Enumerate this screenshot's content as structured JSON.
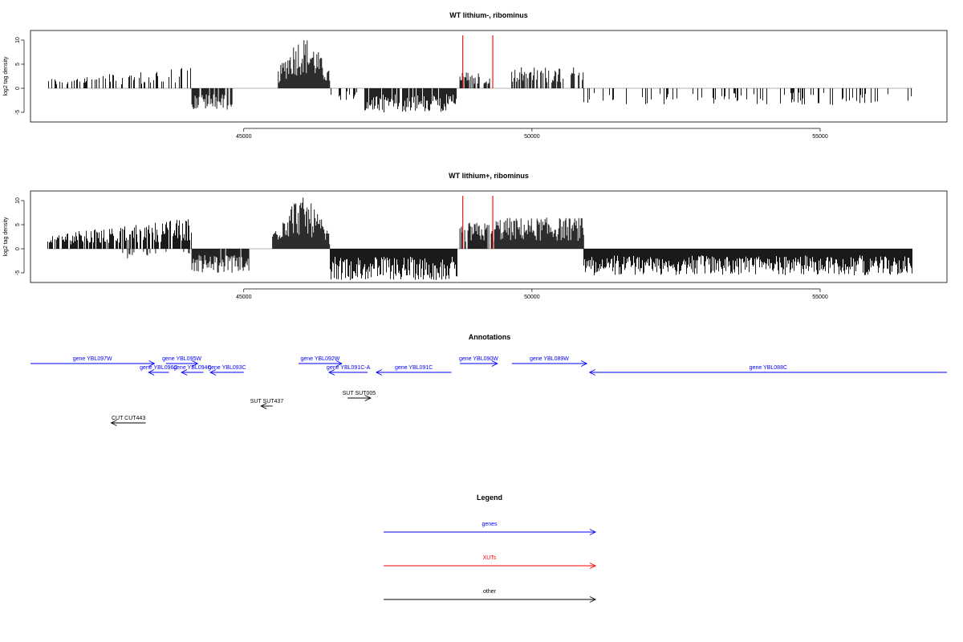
{
  "chart_data": [
    {
      "type": "bar",
      "title": "WT lithium-, ribominus",
      "ylabel": "log2 tag density",
      "xlabel": "",
      "xlim": [
        41300,
        57200
      ],
      "ylim": [
        -7,
        12
      ],
      "x_ticks": [
        45000,
        50000,
        55000
      ],
      "x_tick_labels": [
        "45000",
        "50000",
        "55000"
      ],
      "y_ticks": [
        -5,
        0,
        5,
        10
      ],
      "y_tick_labels": [
        "-5",
        "0",
        "5",
        "10"
      ],
      "grid": false,
      "density_segments": [
        {
          "x_start": 41600,
          "x_end": 44100,
          "strand": "plus",
          "peak": 4.5,
          "trend": "rising",
          "density": 0.35
        },
        {
          "x_start": 44100,
          "x_end": 44800,
          "strand": "minus",
          "peak": 4.5,
          "trend": "flat",
          "density": 0.8
        },
        {
          "x_start": 45600,
          "x_end": 46500,
          "strand": "plus",
          "peak": 10.8,
          "trend": "peak",
          "density": 1.0
        },
        {
          "x_start": 46500,
          "x_end": 47000,
          "strand": "minus",
          "peak": 2.5,
          "trend": "flat",
          "density": 0.3
        },
        {
          "x_start": 47100,
          "x_end": 48700,
          "strand": "minus",
          "peak": 5.0,
          "trend": "flat",
          "density": 0.9
        },
        {
          "x_start": 48750,
          "x_end": 49300,
          "strand": "plus",
          "peak": 3.5,
          "trend": "flat",
          "density": 0.6
        },
        {
          "x_start": 49650,
          "x_end": 50900,
          "strand": "plus",
          "peak": 4.5,
          "trend": "flat",
          "density": 0.55
        },
        {
          "x_start": 50900,
          "x_end": 56600,
          "strand": "minus",
          "peak": 3.5,
          "trend": "flat",
          "density": 0.18
        }
      ],
      "highlight_lines": [
        {
          "x": 48800,
          "y": 11,
          "color": "#ff0000"
        },
        {
          "x": 49320,
          "y": 11,
          "color": "#ff0000"
        }
      ],
      "baseline": {
        "x_start": 41600,
        "x_end": 56600,
        "y": 0
      }
    },
    {
      "type": "bar",
      "title": "WT lithium+, ribominus",
      "ylabel": "log2 tag density",
      "xlabel": "",
      "xlim": [
        41300,
        57200
      ],
      "ylim": [
        -7,
        12
      ],
      "x_ticks": [
        45000,
        50000,
        55000
      ],
      "x_tick_labels": [
        "45000",
        "50000",
        "55000"
      ],
      "y_ticks": [
        -5,
        0,
        5,
        10
      ],
      "y_tick_labels": [
        "-5",
        "0",
        "5",
        "10"
      ],
      "grid": false,
      "density_segments": [
        {
          "x_start": 41600,
          "x_end": 44100,
          "strand": "plus",
          "peak": 6.5,
          "trend": "rising",
          "density": 0.75
        },
        {
          "x_start": 42900,
          "x_end": 44100,
          "strand": "minus",
          "peak": 2.0,
          "trend": "flat",
          "density": 0.2
        },
        {
          "x_start": 44100,
          "x_end": 45100,
          "strand": "minus",
          "peak": 5.0,
          "trend": "flat",
          "density": 0.9
        },
        {
          "x_start": 45500,
          "x_end": 46500,
          "strand": "plus",
          "peak": 10.8,
          "trend": "peak",
          "density": 1.0
        },
        {
          "x_start": 46500,
          "x_end": 48700,
          "strand": "minus",
          "peak": 6.5,
          "trend": "flat",
          "density": 1.0
        },
        {
          "x_start": 48750,
          "x_end": 49350,
          "strand": "plus",
          "peak": 5.5,
          "trend": "flat",
          "density": 0.8
        },
        {
          "x_start": 49350,
          "x_end": 50900,
          "strand": "plus",
          "peak": 6.5,
          "trend": "flat",
          "density": 1.0
        },
        {
          "x_start": 50900,
          "x_end": 56600,
          "strand": "minus",
          "peak": 5.5,
          "trend": "flat",
          "density": 1.0
        }
      ],
      "highlight_lines": [
        {
          "x": 48800,
          "y": 11,
          "color": "#ff0000"
        },
        {
          "x": 49320,
          "y": 11,
          "color": "#ff0000"
        }
      ],
      "baseline": {
        "x_start": 41600,
        "x_end": 56600,
        "y": 0
      }
    }
  ],
  "annotations": {
    "title": "Annotations",
    "features": [
      {
        "label": "gene YBL097W",
        "category": "genes",
        "direction": "right",
        "start": 41300,
        "end": 43450,
        "row": 1,
        "label_row": 1
      },
      {
        "label": "gene YBL096C",
        "category": "genes",
        "direction": "left",
        "start": 43350,
        "end": 43700,
        "row": 2,
        "label_row": 2
      },
      {
        "label": "gene YBL095W",
        "category": "genes",
        "direction": "right",
        "start": 43650,
        "end": 44200,
        "row": 1,
        "label_row": 1
      },
      {
        "label": "gene YBL094C",
        "category": "genes",
        "direction": "left",
        "start": 43920,
        "end": 44300,
        "row": 2,
        "label_row": 2
      },
      {
        "label": "gene YBL093C",
        "category": "genes",
        "direction": "left",
        "start": 44420,
        "end": 45000,
        "row": 2,
        "label_row": 2
      },
      {
        "label": "gene YBL092W",
        "category": "genes",
        "direction": "right",
        "start": 45950,
        "end": 46700,
        "row": 1,
        "label_row": 1
      },
      {
        "label": "gene YBL091C-A",
        "category": "genes",
        "direction": "left",
        "start": 46480,
        "end": 47150,
        "row": 2,
        "label_row": 2
      },
      {
        "label": "gene YBL091C",
        "category": "genes",
        "direction": "left",
        "start": 47300,
        "end": 48600,
        "row": 2,
        "label_row": 2
      },
      {
        "label": "gene YBL090W",
        "category": "genes",
        "direction": "right",
        "start": 48750,
        "end": 49400,
        "row": 1,
        "label_row": 1
      },
      {
        "label": "gene YBL089W",
        "category": "genes",
        "direction": "right",
        "start": 49650,
        "end": 50950,
        "row": 1,
        "label_row": 1
      },
      {
        "label": "gene YBL088C",
        "category": "genes",
        "direction": "left",
        "start": 51000,
        "end": 57200,
        "row": 2,
        "label_row": 2
      },
      {
        "label": "SUT SUT005",
        "category": "other",
        "direction": "right",
        "start": 46800,
        "end": 47200,
        "row": 3,
        "label_row": 3
      },
      {
        "label": "SUT SUT437",
        "category": "other",
        "direction": "left",
        "start": 45300,
        "end": 45500,
        "row": 4,
        "label_row": 4
      },
      {
        "label": "CUT CUT443",
        "category": "other",
        "direction": "left",
        "start": 42700,
        "end": 43300,
        "row": 5,
        "label_row": 5
      }
    ]
  },
  "legend": {
    "title": "Legend",
    "items": [
      {
        "label": "genes",
        "color": "#0000ff"
      },
      {
        "label": "XUTs",
        "color": "#ff0000"
      },
      {
        "label": "other",
        "color": "#000000"
      }
    ]
  },
  "colors": {
    "genes": "#0000ff",
    "XUTs": "#ff0000",
    "other": "#000000",
    "highlight": "#ff0000",
    "baseline": "#999999"
  }
}
